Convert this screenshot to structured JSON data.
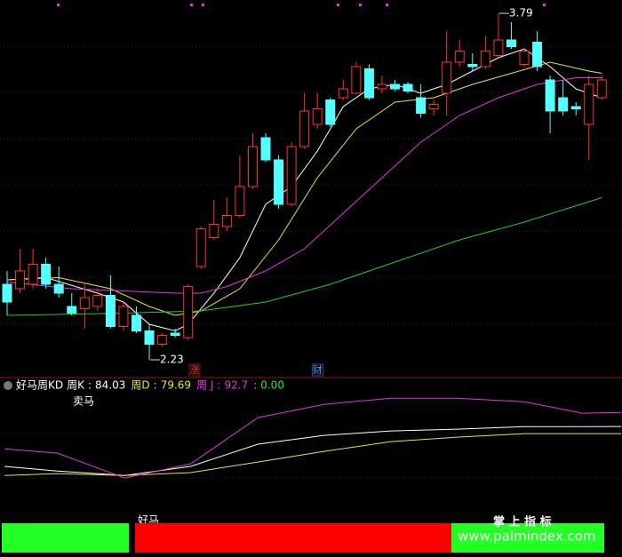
{
  "chart_data": [
    {
      "type": "candlestick",
      "x": [
        1,
        2,
        3,
        4,
        5,
        6,
        7,
        8,
        9,
        10,
        11,
        12,
        13,
        14,
        15,
        16,
        17,
        18,
        19,
        20,
        21,
        22,
        23,
        24,
        25,
        26,
        27,
        28,
        29,
        30,
        31,
        32,
        33,
        34,
        35,
        36,
        37,
        38,
        39,
        40,
        41,
        42,
        43,
        44,
        45,
        46,
        47
      ],
      "open": [
        2.57,
        2.55,
        2.57,
        2.66,
        2.57,
        2.47,
        2.46,
        2.47,
        2.52,
        2.38,
        2.43,
        2.36,
        2.3,
        2.35,
        2.33,
        2.65,
        2.78,
        2.83,
        2.88,
        3.01,
        3.23,
        3.13,
        2.93,
        3.19,
        3.29,
        3.4,
        3.41,
        3.43,
        3.54,
        3.45,
        3.47,
        3.47,
        3.41,
        3.36,
        3.43,
        3.57,
        3.56,
        3.55,
        3.6,
        3.67,
        3.56,
        3.66,
        3.49,
        3.41,
        3.37,
        3.29,
        3.41
      ],
      "high": [
        2.63,
        2.73,
        2.73,
        2.69,
        2.65,
        2.53,
        2.57,
        2.55,
        2.61,
        2.49,
        2.47,
        2.39,
        2.35,
        2.37,
        2.57,
        2.83,
        2.95,
        2.96,
        3.15,
        3.25,
        3.25,
        3.15,
        3.21,
        3.43,
        3.43,
        3.41,
        3.49,
        3.57,
        3.56,
        3.51,
        3.49,
        3.48,
        3.47,
        3.4,
        3.71,
        3.67,
        3.61,
        3.69,
        3.79,
        3.75,
        3.63,
        3.71,
        3.51,
        3.49,
        3.39,
        3.51,
        3.51
      ],
      "low": [
        2.43,
        2.53,
        2.55,
        2.55,
        2.51,
        2.43,
        2.37,
        2.45,
        2.37,
        2.36,
        2.35,
        2.23,
        2.29,
        2.33,
        2.32,
        2.64,
        2.77,
        2.81,
        2.87,
        3.0,
        3.12,
        2.91,
        2.92,
        3.18,
        3.27,
        3.28,
        3.4,
        3.43,
        3.4,
        3.43,
        3.44,
        3.43,
        3.32,
        3.33,
        3.33,
        3.55,
        3.53,
        3.54,
        3.59,
        3.63,
        3.55,
        3.53,
        3.25,
        3.33,
        3.33,
        3.13,
        3.4
      ],
      "close": [
        2.49,
        2.63,
        2.66,
        2.57,
        2.53,
        2.44,
        2.51,
        2.52,
        2.38,
        2.47,
        2.36,
        2.3,
        2.34,
        2.34,
        2.56,
        2.82,
        2.84,
        2.88,
        3.01,
        3.19,
        3.13,
        2.93,
        3.19,
        3.35,
        3.36,
        3.29,
        3.45,
        3.55,
        3.41,
        3.47,
        3.45,
        3.44,
        3.34,
        3.38,
        3.57,
        3.62,
        3.55,
        3.62,
        3.67,
        3.64,
        3.62,
        3.55,
        3.35,
        3.35,
        3.36,
        3.47,
        3.49
      ],
      "up_color": "#ff3232",
      "down_color": "#54ffff",
      "moving_averages": [
        {
          "color": "#ffffff",
          "x": [
            1,
            4,
            8,
            10,
            12,
            14,
            15,
            17,
            19,
            21,
            23,
            25,
            27,
            29,
            31,
            33,
            35,
            37,
            39,
            41,
            43,
            45,
            47
          ],
          "values": [
            2.59,
            2.6,
            2.53,
            2.49,
            2.39,
            2.36,
            2.39,
            2.53,
            2.69,
            2.93,
            3.01,
            3.17,
            3.37,
            3.45,
            3.47,
            3.43,
            3.47,
            3.53,
            3.59,
            3.63,
            3.55,
            3.45,
            3.41
          ]
        },
        {
          "color": "#e6e62e",
          "x": [
            1,
            5,
            9,
            12,
            14,
            16,
            19,
            22,
            25,
            28,
            31,
            34,
            37,
            40,
            43,
            46,
            47
          ],
          "values": [
            2.59,
            2.6,
            2.55,
            2.47,
            2.43,
            2.45,
            2.55,
            2.77,
            3.05,
            3.27,
            3.39,
            3.41,
            3.47,
            3.52,
            3.57,
            3.53,
            3.52
          ]
        },
        {
          "color": "#e633e6",
          "x": [
            1,
            6,
            10,
            14,
            16,
            18,
            21,
            24,
            27,
            30,
            33,
            36,
            39,
            42,
            45,
            47
          ],
          "values": [
            2.58,
            2.55,
            2.54,
            2.53,
            2.53,
            2.56,
            2.63,
            2.73,
            2.89,
            3.05,
            3.21,
            3.33,
            3.41,
            3.47,
            3.5,
            3.5
          ]
        },
        {
          "color": "#22cc22",
          "x": [
            1,
            10,
            16,
            21,
            26,
            31,
            36,
            41,
            47
          ],
          "values": [
            2.43,
            2.44,
            2.45,
            2.49,
            2.57,
            2.67,
            2.77,
            2.85,
            2.96
          ]
        }
      ],
      "xlim": [
        0.45,
        48.56
      ],
      "ylim": [
        2.17,
        3.85
      ],
      "annotations": [
        {
          "value": 3.79,
          "x": 39
        },
        {
          "value": 2.23,
          "x": 12
        }
      ],
      "markers": [
        {
          "text": "涨",
          "x": 15.5,
          "color": "#ff3232"
        },
        {
          "text": "财",
          "x": 25,
          "color": "#4aa0ff"
        }
      ]
    },
    {
      "type": "line",
      "title": "好马周KD",
      "separator": ":",
      "series": [
        {
          "name": "周K",
          "color": "#ffffff",
          "legend_value": 84.03,
          "x": [
            0.8,
            4.9,
            10.1,
            15.2,
            20.4,
            25.5,
            30.7,
            35.8,
            41,
            45.5,
            48.5
          ],
          "values": [
            59.6,
            56.8,
            54.1,
            59.6,
            73.2,
            78.6,
            81.3,
            82.4,
            84.0,
            84.0,
            84.03
          ]
        },
        {
          "name": "周D",
          "color": "#e6e62e",
          "legend_value": 79.69,
          "x": [
            0.8,
            4.9,
            10.1,
            15.2,
            20.4,
            25.5,
            30.7,
            35.8,
            41,
            45.5,
            48.5
          ],
          "values": [
            54.1,
            55.2,
            54.1,
            55.8,
            62.3,
            68.8,
            74.8,
            77.5,
            79.7,
            79.7,
            79.69
          ]
        },
        {
          "name": "周 J",
          "color": "#e633e6",
          "legend_value": 92.7,
          "x": [
            0.8,
            4.9,
            10.1,
            15.2,
            20.4,
            25.5,
            30.7,
            35.8,
            41,
            45.5,
            48.5
          ],
          "values": [
            70.4,
            67.7,
            52.5,
            61.2,
            89.5,
            97.6,
            101.4,
            101.4,
            99.2,
            92.2,
            92.7
          ]
        }
      ],
      "extra_value": {
        "value": 0,
        "label": "0.00"
      },
      "extra_color": "#22ee22",
      "annotation": "卖马",
      "xlim": [
        0.45,
        48.56
      ],
      "ylim": [
        27,
        114
      ]
    }
  ],
  "footer": {
    "left_label": "好马",
    "brand": "掌 上 指 标",
    "url": "www.palmindex.com"
  }
}
